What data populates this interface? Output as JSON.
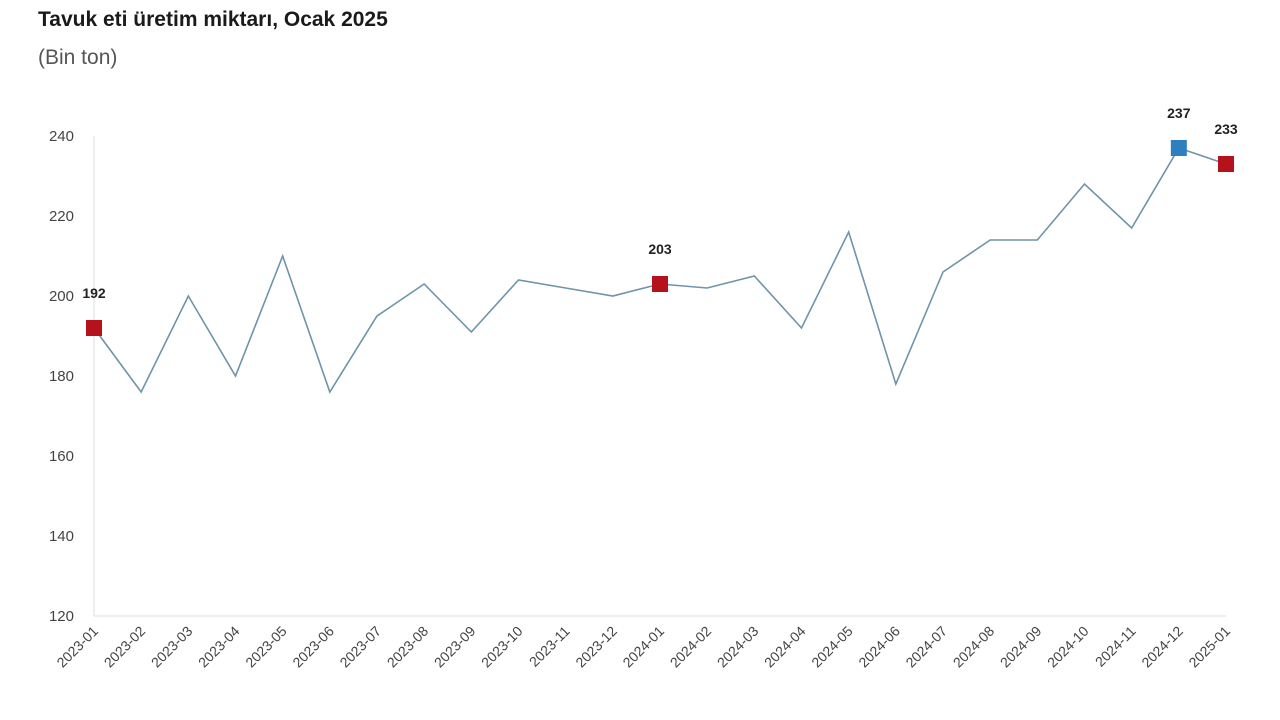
{
  "chart_data": {
    "type": "line",
    "title": "Tavuk eti üretim miktarı, Ocak 2025",
    "subtitle": "(Bin ton)",
    "xlabel": "",
    "ylabel": "",
    "ylim": [
      120,
      240
    ],
    "yticks": [
      120,
      140,
      160,
      180,
      200,
      220,
      240
    ],
    "categories": [
      "2023-01",
      "2023-02",
      "2023-03",
      "2023-04",
      "2023-05",
      "2023-06",
      "2023-07",
      "2023-08",
      "2023-09",
      "2023-10",
      "2023-11",
      "2023-12",
      "2024-01",
      "2024-02",
      "2024-03",
      "2024-04",
      "2024-05",
      "2024-06",
      "2024-07",
      "2024-08",
      "2024-09",
      "2024-10",
      "2024-11",
      "2024-12",
      "2025-01"
    ],
    "values": [
      192,
      176,
      200,
      180,
      210,
      176,
      195,
      203,
      191,
      204,
      202,
      200,
      203,
      202,
      205,
      192,
      216,
      178,
      206,
      214,
      214,
      228,
      217,
      237,
      233
    ],
    "highlighted_points": [
      {
        "category": "2023-01",
        "label": "192",
        "color": "#b5121b"
      },
      {
        "category": "2024-01",
        "label": "203",
        "color": "#b5121b"
      },
      {
        "category": "2024-12",
        "label": "237",
        "color": "#2e7fbf"
      },
      {
        "category": "2025-01",
        "label": "233",
        "color": "#b5121b"
      }
    ],
    "line_color": "#6f93a8",
    "grid": false,
    "legend": "none"
  }
}
